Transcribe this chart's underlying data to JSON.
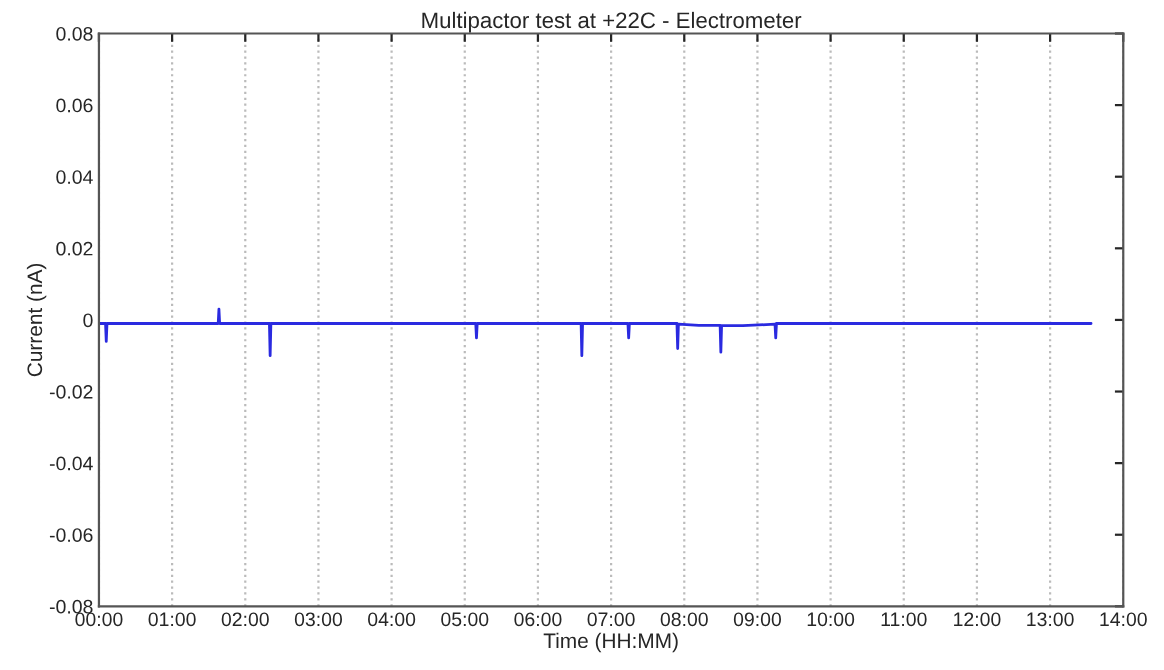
{
  "chart_data": {
    "type": "line",
    "title": "Multipactor test at +22C - Electrometer",
    "xlabel": "Time (HH:MM)",
    "ylabel": "Current (nA)",
    "x": [
      0.0,
      0.09,
      0.1,
      0.11,
      0.8,
      1.63,
      1.64,
      1.65,
      2.33,
      2.34,
      2.35,
      3.2,
      4.1,
      5.15,
      5.16,
      5.17,
      6.0,
      6.59,
      6.6,
      6.61,
      7.23,
      7.24,
      7.25,
      7.9,
      7.91,
      7.92,
      8.2,
      8.49,
      8.5,
      8.51,
      8.8,
      9.24,
      9.25,
      9.26,
      10.5,
      12.0,
      13.56
    ],
    "series": [
      {
        "color": "#2a2ae0",
        "values": [
          -0.001,
          -0.001,
          -0.006,
          -0.001,
          -0.001,
          -0.001,
          0.003,
          -0.001,
          -0.001,
          -0.01,
          -0.001,
          -0.001,
          -0.001,
          -0.001,
          -0.005,
          -0.001,
          -0.001,
          -0.001,
          -0.01,
          -0.001,
          -0.001,
          -0.005,
          -0.001,
          -0.001,
          -0.008,
          -0.0012,
          -0.0015,
          -0.0015,
          -0.009,
          -0.0016,
          -0.0016,
          -0.0012,
          -0.005,
          -0.001,
          -0.001,
          -0.001,
          -0.001
        ]
      }
    ],
    "xlim": [
      0,
      14
    ],
    "xticks": [
      {
        "value": 0,
        "label": "00:00"
      },
      {
        "value": 1,
        "label": "01:00"
      },
      {
        "value": 2,
        "label": "02:00"
      },
      {
        "value": 3,
        "label": "03:00"
      },
      {
        "value": 4,
        "label": "04:00"
      },
      {
        "value": 5,
        "label": "05:00"
      },
      {
        "value": 6,
        "label": "06:00"
      },
      {
        "value": 7,
        "label": "07:00"
      },
      {
        "value": 8,
        "label": "08:00"
      },
      {
        "value": 9,
        "label": "09:00"
      },
      {
        "value": 10,
        "label": "10:00"
      },
      {
        "value": 11,
        "label": "11:00"
      },
      {
        "value": 12,
        "label": "12:00"
      },
      {
        "value": 13,
        "label": "13:00"
      },
      {
        "value": 14,
        "label": "14:00"
      }
    ],
    "ylim": [
      -0.08,
      0.08
    ],
    "yticks": [
      {
        "value": -0.08,
        "label": "-0.08"
      },
      {
        "value": -0.06,
        "label": "-0.06"
      },
      {
        "value": -0.04,
        "label": "-0.04"
      },
      {
        "value": -0.02,
        "label": "-0.02"
      },
      0,
      0.02,
      0.04,
      0.06,
      0.08
    ],
    "grid": "x",
    "marker": "none",
    "line_style": "solid"
  }
}
